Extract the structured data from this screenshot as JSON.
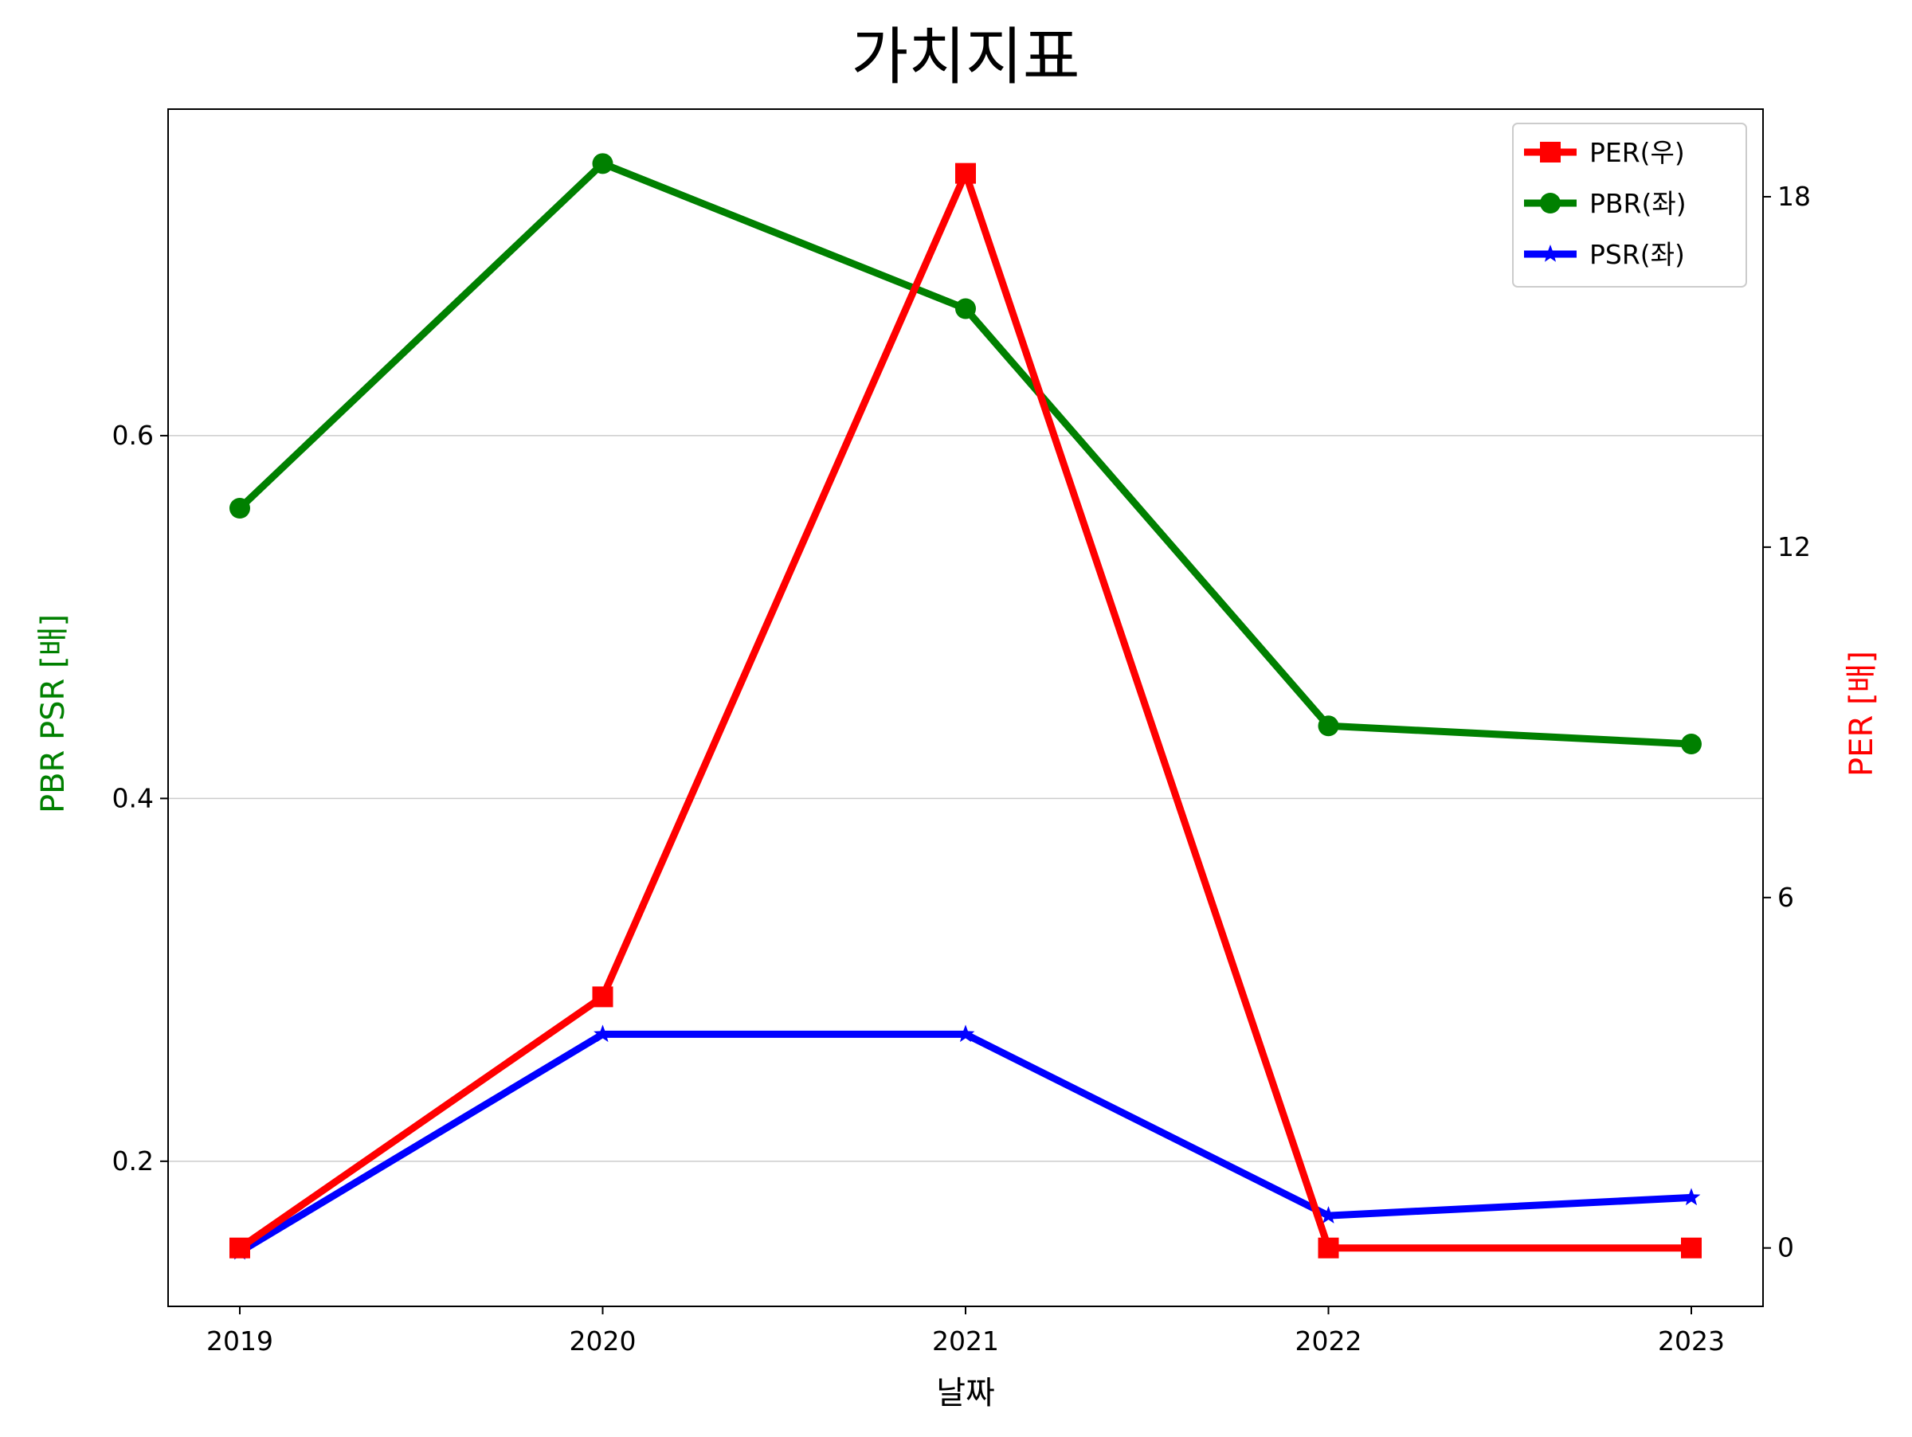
{
  "chart_data": {
    "type": "line",
    "title": "가치지표",
    "xlabel": "날짜",
    "ylabel_left": "PBR PSR [배]",
    "ylabel_right": "PER [배]",
    "categories": [
      "2019",
      "2020",
      "2021",
      "2022",
      "2023"
    ],
    "left_axis": {
      "ylim": [
        0.12,
        0.78
      ],
      "ticks": [
        0.2,
        0.4,
        0.6
      ],
      "tick_labels": [
        "0.2",
        "0.4",
        "0.6"
      ],
      "grid": true
    },
    "right_axis": {
      "ylim": [
        -1,
        19.5
      ],
      "ticks": [
        0,
        6,
        12,
        18
      ],
      "tick_labels": [
        "0",
        "6",
        "12",
        "18"
      ],
      "grid": false
    },
    "series": [
      {
        "name": "PER(우)",
        "axis": "right",
        "color": "#ff0000",
        "marker": "square",
        "values": [
          0,
          4.3,
          18.4,
          0,
          0
        ]
      },
      {
        "name": "PBR(좌)",
        "axis": "left",
        "color": "#008000",
        "marker": "circle",
        "values": [
          0.56,
          0.75,
          0.67,
          0.44,
          0.43
        ]
      },
      {
        "name": "PSR(좌)",
        "axis": "left",
        "color": "#0000ff",
        "marker": "star",
        "values": [
          0.15,
          0.27,
          0.27,
          0.17,
          0.18
        ]
      }
    ],
    "legend": {
      "position": "top-right"
    },
    "colors": {
      "left_label": "#008000",
      "right_label": "#ff0000"
    }
  }
}
